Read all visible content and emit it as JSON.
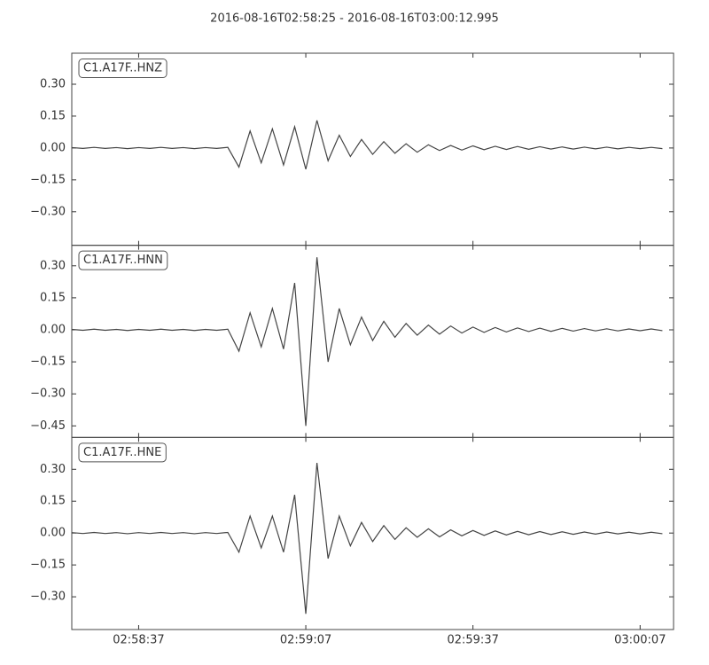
{
  "chart_data": {
    "type": "line",
    "title": "2016-08-16T02:58:25  -  2016-08-16T03:00:12.995",
    "x": [
      "02:58:25",
      "02:58:27",
      "02:58:29",
      "02:58:31",
      "02:58:33",
      "02:58:35",
      "02:58:37",
      "02:58:39",
      "02:58:41",
      "02:58:43",
      "02:58:45",
      "02:58:47",
      "02:58:49",
      "02:58:51",
      "02:58:53",
      "02:58:55",
      "02:58:57",
      "02:58:59",
      "02:59:01",
      "02:59:03",
      "02:59:05",
      "02:59:07",
      "02:59:09",
      "02:59:11",
      "02:59:13",
      "02:59:15",
      "02:59:17",
      "02:59:19",
      "02:59:21",
      "02:59:23",
      "02:59:25",
      "02:59:27",
      "02:59:29",
      "02:59:31",
      "02:59:33",
      "02:59:35",
      "02:59:37",
      "02:59:39",
      "02:59:41",
      "02:59:43",
      "02:59:45",
      "02:59:47",
      "02:59:49",
      "02:59:51",
      "02:59:53",
      "02:59:55",
      "02:59:57",
      "02:59:59",
      "03:00:01",
      "03:00:03",
      "03:00:05",
      "03:00:07",
      "03:00:09",
      "03:00:11"
    ],
    "xlim": [
      "02:58:25",
      "03:00:13"
    ],
    "xticks": [
      "02:58:37",
      "02:59:07",
      "02:59:37",
      "03:00:07"
    ],
    "series": [
      {
        "name": "C1.A17F..HNZ",
        "color": "#444444",
        "ylim": [
          -0.458,
          0.446
        ],
        "yticks": [
          {
            "value": 0.3,
            "label": "0.30"
          },
          {
            "value": 0.15,
            "label": "0.15"
          },
          {
            "value": 0,
            "label": "0.00"
          },
          {
            "value": -0.15,
            "label": "−0.15"
          },
          {
            "value": -0.3,
            "label": "−0.30"
          }
        ],
        "values": [
          0.002,
          -0.002,
          0.003,
          -0.002,
          0.002,
          -0.003,
          0.002,
          -0.002,
          0.003,
          -0.002,
          0.002,
          -0.003,
          0.002,
          -0.002,
          0.003,
          -0.09,
          0.08,
          -0.07,
          0.09,
          -0.08,
          0.1,
          -0.1,
          0.13,
          -0.06,
          0.06,
          -0.04,
          0.04,
          -0.03,
          0.03,
          -0.025,
          0.02,
          -0.02,
          0.015,
          -0.012,
          0.012,
          -0.01,
          0.01,
          -0.008,
          0.008,
          -0.007,
          0.007,
          -0.006,
          0.006,
          -0.005,
          0.005,
          -0.005,
          0.004,
          -0.004,
          0.004,
          -0.004,
          0.003,
          -0.003,
          0.003,
          -0.003
        ]
      },
      {
        "name": "C1.A17F..HNN",
        "color": "#444444",
        "ylim": [
          -0.504,
          0.396
        ],
        "yticks": [
          {
            "value": 0.3,
            "label": "0.30"
          },
          {
            "value": 0.15,
            "label": "0.15"
          },
          {
            "value": 0,
            "label": "0.00"
          },
          {
            "value": -0.15,
            "label": "−0.15"
          },
          {
            "value": -0.3,
            "label": "−0.30"
          },
          {
            "value": -0.45,
            "label": "−0.45"
          }
        ],
        "values": [
          0.002,
          -0.002,
          0.003,
          -0.002,
          0.002,
          -0.003,
          0.002,
          -0.002,
          0.003,
          -0.002,
          0.002,
          -0.003,
          0.002,
          -0.002,
          0.003,
          -0.1,
          0.08,
          -0.08,
          0.1,
          -0.09,
          0.22,
          -0.45,
          0.34,
          -0.15,
          0.1,
          -0.07,
          0.06,
          -0.05,
          0.04,
          -0.035,
          0.03,
          -0.025,
          0.022,
          -0.02,
          0.018,
          -0.015,
          0.013,
          -0.012,
          0.011,
          -0.01,
          0.009,
          -0.008,
          0.008,
          -0.007,
          0.007,
          -0.006,
          0.006,
          -0.005,
          0.005,
          -0.005,
          0.004,
          -0.004,
          0.004,
          -0.004
        ]
      },
      {
        "name": "C1.A17F..HNE",
        "color": "#444444",
        "ylim": [
          -0.454,
          0.45
        ],
        "yticks": [
          {
            "value": 0.3,
            "label": "0.30"
          },
          {
            "value": 0.15,
            "label": "0.15"
          },
          {
            "value": 0,
            "label": "0.00"
          },
          {
            "value": -0.15,
            "label": "−0.15"
          },
          {
            "value": -0.3,
            "label": "−0.30"
          }
        ],
        "values": [
          0.002,
          -0.002,
          0.003,
          -0.002,
          0.002,
          -0.003,
          0.002,
          -0.002,
          0.003,
          -0.002,
          0.002,
          -0.003,
          0.002,
          -0.002,
          0.003,
          -0.09,
          0.08,
          -0.07,
          0.08,
          -0.09,
          0.18,
          -0.38,
          0.33,
          -0.12,
          0.08,
          -0.06,
          0.05,
          -0.04,
          0.035,
          -0.03,
          0.025,
          -0.02,
          0.02,
          -0.018,
          0.015,
          -0.013,
          0.012,
          -0.011,
          0.01,
          -0.009,
          0.008,
          -0.008,
          0.007,
          -0.007,
          0.006,
          -0.006,
          0.005,
          -0.005,
          0.005,
          -0.004,
          0.004,
          -0.004,
          0.004,
          -0.003
        ]
      }
    ]
  }
}
